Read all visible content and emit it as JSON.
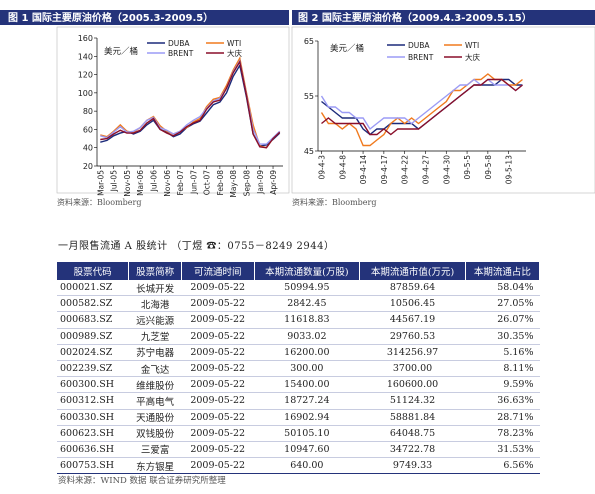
{
  "chart_data": [
    {
      "type": "line",
      "title": "图 1  国际主要原油价格（2005.3-2009.5）",
      "unit_label": "美元／桶",
      "source": "资料来源：Bloomberg",
      "categories": [
        "Mar-05",
        null,
        "Jul-05",
        null,
        "Nov-05",
        null,
        "Mar-06",
        null,
        "Jul-06",
        null,
        "Nov-06",
        null,
        "Feb-07",
        null,
        "Jun-07",
        null,
        "Oct-07",
        null,
        "Feb-08",
        null,
        "May-08",
        null,
        "Sep-08",
        null,
        "Jan-09",
        null,
        "Apr-09",
        null
      ],
      "ylim": [
        20,
        160
      ],
      "yticks": [
        20,
        40,
        60,
        80,
        100,
        120,
        140,
        160
      ],
      "grid": false,
      "legend": "top",
      "series": [
        {
          "name": "DUBA",
          "color": "#1c2a7a",
          "values": [
            46,
            48,
            53,
            56,
            58,
            55,
            58,
            65,
            70,
            60,
            57,
            52,
            55,
            62,
            66,
            69,
            78,
            87,
            90,
            100,
            118,
            130,
            95,
            55,
            42,
            43,
            49,
            56
          ]
        },
        {
          "name": "WTI",
          "color": "#f07a1e",
          "values": [
            54,
            52,
            58,
            65,
            58,
            57,
            62,
            70,
            74,
            64,
            58,
            55,
            58,
            62,
            68,
            72,
            85,
            93,
            95,
            108,
            125,
            138,
            100,
            65,
            42,
            40,
            50,
            58
          ]
        },
        {
          "name": "BRENT",
          "color": "#9b9bf5",
          "values": [
            53,
            51,
            57,
            63,
            57,
            58,
            62,
            70,
            73,
            62,
            59,
            55,
            58,
            65,
            70,
            74,
            83,
            91,
            94,
            105,
            123,
            135,
            98,
            60,
            44,
            44,
            51,
            58
          ]
        },
        {
          "name": "大庆",
          "color": "#8a0f2a",
          "values": [
            49,
            50,
            55,
            59,
            56,
            56,
            59,
            67,
            72,
            60,
            56,
            53,
            57,
            63,
            67,
            70,
            82,
            90,
            92,
            105,
            122,
            134,
            97,
            55,
            41,
            40,
            50,
            57
          ]
        }
      ]
    },
    {
      "type": "line",
      "title": "图 2  国际主要原油价格（2009.4.3-2009.5.15）",
      "unit_label": "美元／桶",
      "source": "资料来源：Bloomberg",
      "categories": [
        "09-4-3",
        null,
        null,
        "09-4-8",
        null,
        null,
        "09-4-14",
        null,
        null,
        "09-4-17",
        null,
        null,
        "09-4-22",
        null,
        null,
        "09-4-27",
        null,
        null,
        "09-4-30",
        null,
        null,
        "09-5-5",
        null,
        null,
        "09-5-8",
        null,
        null,
        "09-5-13",
        null,
        null
      ],
      "ylim": [
        45,
        65
      ],
      "yticks": [
        45,
        55,
        65
      ],
      "grid": false,
      "legend": "top",
      "series": [
        {
          "name": "DUBA",
          "color": "#1c2a7a",
          "values": [
            54,
            53,
            52,
            51,
            51,
            51,
            49,
            48,
            49,
            49,
            50,
            50,
            50,
            50,
            49,
            50,
            51,
            52,
            53,
            54,
            55,
            56,
            57,
            57,
            57,
            57,
            58,
            58,
            57,
            57
          ]
        },
        {
          "name": "WTI",
          "color": "#f07a1e",
          "values": [
            52,
            50,
            50,
            49,
            50,
            49,
            46,
            46,
            47,
            48,
            50,
            51,
            50,
            51,
            50,
            51,
            52,
            53,
            54,
            56,
            56,
            57,
            58,
            58,
            59,
            58,
            58,
            57,
            57,
            58
          ]
        },
        {
          "name": "BRENT",
          "color": "#9b9bf5",
          "values": [
            55,
            53,
            53,
            52,
            52,
            51,
            51,
            49,
            50,
            51,
            51,
            51,
            51,
            50,
            51,
            52,
            53,
            54,
            55,
            56,
            57,
            57,
            58,
            57,
            58,
            57,
            57,
            57,
            56,
            57
          ]
        },
        {
          "name": "大庆",
          "color": "#8a0f2a",
          "values": [
            50,
            51,
            50,
            50,
            50,
            50,
            50,
            48,
            48,
            49,
            48,
            49,
            49,
            49,
            49,
            50,
            51,
            52,
            53,
            54,
            55,
            56,
            57,
            57,
            58,
            58,
            58,
            57,
            56,
            57
          ]
        }
      ]
    }
  ],
  "heading": "一月限售流通 A 股统计  （丁煜  ☎：0755－8249 2944）",
  "table": {
    "columns": [
      "股票代码",
      "股票简称",
      "可流通时间",
      "本期流通数量(万股)",
      "本期流通市值(万元)",
      "本期流通占比"
    ],
    "rows": [
      [
        "000021.SZ",
        "长城开发",
        "2009-05-22",
        "50994.95",
        "87859.64",
        "58.04%"
      ],
      [
        "000582.SZ",
        "北海港",
        "2009-05-22",
        "2842.45",
        "10506.45",
        "27.05%"
      ],
      [
        "000683.SZ",
        "远兴能源",
        "2009-05-22",
        "11618.83",
        "44567.19",
        "26.07%"
      ],
      [
        "000989.SZ",
        "九芝堂",
        "2009-05-22",
        "9033.02",
        "29760.53",
        "30.35%"
      ],
      [
        "002024.SZ",
        "苏宁电器",
        "2009-05-22",
        "16200.00",
        "314256.97",
        "5.16%"
      ],
      [
        "002239.SZ",
        "金飞达",
        "2009-05-22",
        "300.00",
        "3700.00",
        "8.11%"
      ],
      [
        "600300.SH",
        "维维股份",
        "2009-05-22",
        "15400.00",
        "160600.00",
        "9.59%"
      ],
      [
        "600312.SH",
        "平高电气",
        "2009-05-22",
        "18727.24",
        "51124.32",
        "36.63%"
      ],
      [
        "600330.SH",
        "天通股份",
        "2009-05-22",
        "16902.94",
        "58881.84",
        "28.71%"
      ],
      [
        "600623.SH",
        "双钱股份",
        "2009-05-22",
        "50105.10",
        "64048.75",
        "78.23%"
      ],
      [
        "600636.SH",
        "三爱富",
        "2009-05-22",
        "10947.60",
        "34722.78",
        "31.53%"
      ],
      [
        "600753.SH",
        "东方银星",
        "2009-05-22",
        "640.00",
        "9749.33",
        "6.56%"
      ]
    ]
  },
  "table_source": "资料来源：WIND 数据  联合证券研究所整理"
}
